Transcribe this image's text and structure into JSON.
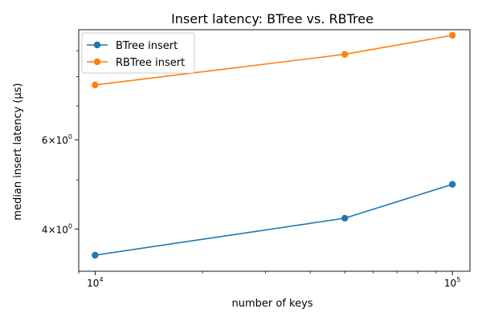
{
  "chart_data": {
    "type": "line",
    "title": "Insert latency: BTree vs. RBTree",
    "xlabel": "number of keys",
    "ylabel": "median insert latency (µs)",
    "xscale": "log",
    "yscale": "log",
    "xlim": [
      9000,
      112000
    ],
    "ylim": [
      3.3,
      9.9
    ],
    "x": [
      10000,
      50000,
      100000
    ],
    "series": [
      {
        "name": "BTree insert",
        "values": [
          3.55,
          4.2,
          4.9
        ],
        "color": "#1f77b4"
      },
      {
        "name": "RBTree insert",
        "values": [
          7.7,
          8.85,
          9.65
        ],
        "color": "#ff7f0e"
      }
    ],
    "x_ticks": [
      {
        "value": 10000,
        "base": "10",
        "exp": "4"
      },
      {
        "value": 100000,
        "base": "10",
        "exp": "5"
      }
    ],
    "y_ticks": [
      {
        "value": 4,
        "mantissa": "4",
        "base": "10",
        "exp": "0"
      },
      {
        "value": 6,
        "mantissa": "6",
        "base": "10",
        "exp": "0"
      }
    ],
    "y_minor_ticks": [
      5,
      7,
      8,
      9
    ],
    "grid": false,
    "legend_position": "upper-left"
  }
}
